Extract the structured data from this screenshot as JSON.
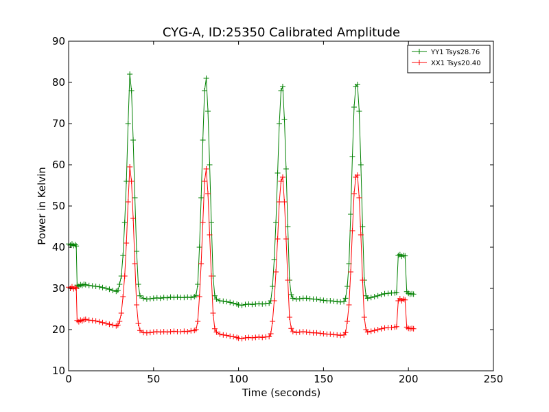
{
  "chart_data": {
    "type": "line",
    "title": "CYG-A, ID:25350 Calibrated Amplitude",
    "xlabel": "Time (seconds)",
    "ylabel": "Power in Kelvin",
    "xlim": [
      0,
      250
    ],
    "ylim": [
      10,
      90
    ],
    "xticks": [
      0,
      50,
      100,
      150,
      200,
      250
    ],
    "yticks": [
      10,
      20,
      30,
      40,
      50,
      60,
      70,
      80,
      90
    ],
    "grid": false,
    "legend_position": "top-right",
    "marker": "+",
    "series": [
      {
        "name": "YY1 Tsys28.76",
        "color": "#008000",
        "points": [
          [
            0,
            40.8
          ],
          [
            1,
            40.5
          ],
          [
            2,
            40.8
          ],
          [
            3,
            40.4
          ],
          [
            4,
            40.6
          ],
          [
            4.5,
            40.3
          ],
          [
            5,
            30.8
          ],
          [
            6,
            30.5
          ],
          [
            7,
            30.9
          ],
          [
            8,
            30.7
          ],
          [
            9,
            31.0
          ],
          [
            10,
            30.9
          ],
          [
            12,
            30.7
          ],
          [
            14,
            30.6
          ],
          [
            16,
            30.5
          ],
          [
            18,
            30.4
          ],
          [
            20,
            30.2
          ],
          [
            22,
            30.0
          ],
          [
            24,
            29.8
          ],
          [
            26,
            29.5
          ],
          [
            28,
            29.3
          ],
          [
            29,
            29.5
          ],
          [
            30,
            31.0
          ],
          [
            31,
            33.0
          ],
          [
            32,
            38.0
          ],
          [
            33,
            46.0
          ],
          [
            34,
            56.0
          ],
          [
            35,
            70.0
          ],
          [
            36,
            82.0
          ],
          [
            37,
            78.0
          ],
          [
            38,
            66.0
          ],
          [
            39,
            52.0
          ],
          [
            40,
            39.0
          ],
          [
            41,
            31.0
          ],
          [
            42,
            28.2
          ],
          [
            44,
            27.6
          ],
          [
            46,
            27.4
          ],
          [
            48,
            27.5
          ],
          [
            50,
            27.6
          ],
          [
            52,
            27.7
          ],
          [
            54,
            27.6
          ],
          [
            56,
            27.8
          ],
          [
            58,
            27.7
          ],
          [
            60,
            27.9
          ],
          [
            62,
            27.8
          ],
          [
            64,
            27.9
          ],
          [
            66,
            27.8
          ],
          [
            68,
            27.8
          ],
          [
            70,
            27.9
          ],
          [
            72,
            27.8
          ],
          [
            74,
            28.0
          ],
          [
            75,
            28.3
          ],
          [
            76,
            31.0
          ],
          [
            77,
            40.0
          ],
          [
            78,
            52.0
          ],
          [
            79,
            66.0
          ],
          [
            80,
            78.0
          ],
          [
            81,
            81.0
          ],
          [
            82,
            73.0
          ],
          [
            83,
            60.0
          ],
          [
            84,
            46.0
          ],
          [
            85,
            33.0
          ],
          [
            86,
            28.2
          ],
          [
            87,
            27.4
          ],
          [
            89,
            27.0
          ],
          [
            91,
            26.9
          ],
          [
            93,
            26.8
          ],
          [
            95,
            26.6
          ],
          [
            97,
            26.4
          ],
          [
            99,
            26.2
          ],
          [
            100,
            26.0
          ],
          [
            102,
            25.9
          ],
          [
            104,
            26.1
          ],
          [
            106,
            26.2
          ],
          [
            108,
            26.1
          ],
          [
            110,
            26.2
          ],
          [
            112,
            26.3
          ],
          [
            114,
            26.2
          ],
          [
            116,
            26.3
          ],
          [
            118,
            26.4
          ],
          [
            119,
            27.0
          ],
          [
            120,
            30.5
          ],
          [
            121,
            37.0
          ],
          [
            122,
            46.0
          ],
          [
            123,
            58.0
          ],
          [
            124,
            70.0
          ],
          [
            125,
            78.0
          ],
          [
            126,
            79.0
          ],
          [
            127,
            71.0
          ],
          [
            128,
            59.0
          ],
          [
            129,
            45.0
          ],
          [
            130,
            32.0
          ],
          [
            131,
            28.5
          ],
          [
            132,
            27.6
          ],
          [
            134,
            27.4
          ],
          [
            136,
            27.5
          ],
          [
            138,
            27.6
          ],
          [
            140,
            27.6
          ],
          [
            142,
            27.5
          ],
          [
            144,
            27.4
          ],
          [
            146,
            27.4
          ],
          [
            148,
            27.2
          ],
          [
            150,
            27.1
          ],
          [
            152,
            27.0
          ],
          [
            154,
            27.0
          ],
          [
            156,
            26.9
          ],
          [
            158,
            26.8
          ],
          [
            160,
            26.7
          ],
          [
            162,
            26.8
          ],
          [
            163,
            27.6
          ],
          [
            164,
            30.5
          ],
          [
            165,
            36.0
          ],
          [
            166,
            48.0
          ],
          [
            167,
            62.0
          ],
          [
            168,
            74.0
          ],
          [
            169,
            79.0
          ],
          [
            170,
            79.5
          ],
          [
            171,
            73.0
          ],
          [
            172,
            60.0
          ],
          [
            173,
            45.0
          ],
          [
            174,
            32.0
          ],
          [
            175,
            28.2
          ],
          [
            176,
            27.6
          ],
          [
            178,
            27.8
          ],
          [
            180,
            28.0
          ],
          [
            182,
            28.2
          ],
          [
            184,
            28.5
          ],
          [
            186,
            28.7
          ],
          [
            188,
            28.8
          ],
          [
            190,
            28.9
          ],
          [
            192,
            28.9
          ],
          [
            193,
            29.0
          ],
          [
            194,
            38.0
          ],
          [
            195,
            38.2
          ],
          [
            196,
            37.8
          ],
          [
            197,
            38.0
          ],
          [
            198,
            37.9
          ],
          [
            199,
            29.2
          ],
          [
            200,
            28.8
          ],
          [
            201,
            28.6
          ],
          [
            202,
            28.7
          ],
          [
            203,
            28.6
          ]
        ]
      },
      {
        "name": "XX1 Tsys20.40",
        "color": "#ff0000",
        "points": [
          [
            0,
            30.3
          ],
          [
            1,
            30.0
          ],
          [
            2,
            30.4
          ],
          [
            3,
            29.9
          ],
          [
            4,
            30.2
          ],
          [
            4.5,
            30.0
          ],
          [
            5,
            22.2
          ],
          [
            6,
            21.9
          ],
          [
            7,
            22.3
          ],
          [
            8,
            22.1
          ],
          [
            9,
            22.4
          ],
          [
            10,
            22.5
          ],
          [
            12,
            22.3
          ],
          [
            14,
            22.2
          ],
          [
            16,
            22.1
          ],
          [
            18,
            21.9
          ],
          [
            20,
            21.7
          ],
          [
            22,
            21.5
          ],
          [
            24,
            21.3
          ],
          [
            26,
            21.1
          ],
          [
            28,
            20.9
          ],
          [
            29,
            21.1
          ],
          [
            30,
            22.0
          ],
          [
            31,
            24.0
          ],
          [
            32,
            28.0
          ],
          [
            33,
            33.0
          ],
          [
            34,
            41.0
          ],
          [
            35,
            51.0
          ],
          [
            36,
            59.5
          ],
          [
            37,
            56.0
          ],
          [
            38,
            47.0
          ],
          [
            39,
            36.0
          ],
          [
            40,
            26.0
          ],
          [
            41,
            21.5
          ],
          [
            42,
            19.8
          ],
          [
            44,
            19.3
          ],
          [
            46,
            19.2
          ],
          [
            48,
            19.3
          ],
          [
            50,
            19.4
          ],
          [
            52,
            19.5
          ],
          [
            54,
            19.4
          ],
          [
            56,
            19.5
          ],
          [
            58,
            19.4
          ],
          [
            60,
            19.5
          ],
          [
            62,
            19.6
          ],
          [
            64,
            19.5
          ],
          [
            66,
            19.5
          ],
          [
            68,
            19.6
          ],
          [
            70,
            19.5
          ],
          [
            72,
            19.7
          ],
          [
            74,
            19.8
          ],
          [
            75,
            20.0
          ],
          [
            76,
            22.0
          ],
          [
            77,
            28.0
          ],
          [
            78,
            36.0
          ],
          [
            79,
            46.0
          ],
          [
            80,
            56.0
          ],
          [
            81,
            59.0
          ],
          [
            82,
            53.0
          ],
          [
            83,
            43.0
          ],
          [
            84,
            33.0
          ],
          [
            85,
            24.0
          ],
          [
            86,
            20.2
          ],
          [
            87,
            19.4
          ],
          [
            89,
            18.9
          ],
          [
            91,
            18.7
          ],
          [
            93,
            18.6
          ],
          [
            95,
            18.4
          ],
          [
            97,
            18.3
          ],
          [
            99,
            18.1
          ],
          [
            100,
            17.9
          ],
          [
            102,
            17.8
          ],
          [
            104,
            18.0
          ],
          [
            106,
            18.1
          ],
          [
            108,
            18.0
          ],
          [
            110,
            18.1
          ],
          [
            112,
            18.2
          ],
          [
            114,
            18.1
          ],
          [
            116,
            18.2
          ],
          [
            118,
            18.3
          ],
          [
            119,
            19.0
          ],
          [
            120,
            22.0
          ],
          [
            121,
            27.0
          ],
          [
            122,
            34.0
          ],
          [
            123,
            42.0
          ],
          [
            124,
            51.0
          ],
          [
            125,
            56.0
          ],
          [
            126,
            57.0
          ],
          [
            127,
            51.0
          ],
          [
            128,
            42.0
          ],
          [
            129,
            32.0
          ],
          [
            130,
            23.0
          ],
          [
            131,
            20.3
          ],
          [
            132,
            19.5
          ],
          [
            134,
            19.3
          ],
          [
            136,
            19.4
          ],
          [
            138,
            19.5
          ],
          [
            140,
            19.4
          ],
          [
            142,
            19.3
          ],
          [
            144,
            19.2
          ],
          [
            146,
            19.2
          ],
          [
            148,
            19.1
          ],
          [
            150,
            19.0
          ],
          [
            152,
            18.9
          ],
          [
            154,
            18.9
          ],
          [
            156,
            18.8
          ],
          [
            158,
            18.7
          ],
          [
            160,
            18.6
          ],
          [
            162,
            18.7
          ],
          [
            163,
            19.3
          ],
          [
            164,
            22.0
          ],
          [
            165,
            26.0
          ],
          [
            166,
            34.0
          ],
          [
            167,
            44.0
          ],
          [
            168,
            53.0
          ],
          [
            169,
            57.0
          ],
          [
            170,
            57.5
          ],
          [
            171,
            52.0
          ],
          [
            172,
            43.0
          ],
          [
            173,
            32.0
          ],
          [
            174,
            23.0
          ],
          [
            175,
            20.0
          ],
          [
            176,
            19.4
          ],
          [
            178,
            19.6
          ],
          [
            180,
            19.8
          ],
          [
            182,
            20.0
          ],
          [
            184,
            20.2
          ],
          [
            186,
            20.4
          ],
          [
            188,
            20.5
          ],
          [
            190,
            20.5
          ],
          [
            192,
            20.6
          ],
          [
            193,
            20.7
          ],
          [
            194,
            27.0
          ],
          [
            195,
            27.5
          ],
          [
            196,
            27.0
          ],
          [
            197,
            27.4
          ],
          [
            198,
            27.2
          ],
          [
            199,
            20.6
          ],
          [
            200,
            20.3
          ],
          [
            201,
            20.2
          ],
          [
            202,
            20.3
          ],
          [
            203,
            20.2
          ]
        ]
      }
    ]
  }
}
